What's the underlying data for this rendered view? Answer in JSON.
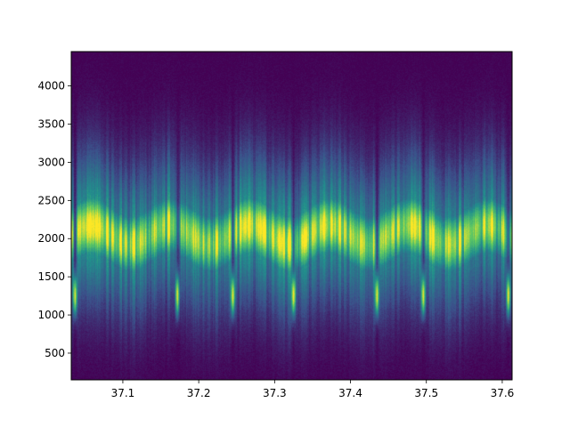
{
  "chart_data": {
    "type": "heatmap",
    "title": "",
    "xlabel": "",
    "ylabel": "",
    "xlim": [
      37.032,
      37.613
    ],
    "ylim": [
      150,
      4450
    ],
    "colormap": "viridis",
    "grid": false,
    "legend": "none",
    "x_ticks": [
      37.1,
      37.2,
      37.3,
      37.4,
      37.5,
      37.6
    ],
    "x_tick_labels": [
      "37.1",
      "37.2",
      "37.3",
      "37.4",
      "37.5",
      "37.6"
    ],
    "y_ticks": [
      500,
      1000,
      1500,
      2000,
      2500,
      3000,
      3500,
      4000
    ],
    "y_tick_labels": [
      "500",
      "1000",
      "1500",
      "2000",
      "2500",
      "3000",
      "3500",
      "4000"
    ],
    "band": {
      "center_hz": 2050,
      "half_width_hz": 420,
      "center_oscillation_hz": 120,
      "secondary_peak_hz": 1250,
      "dropouts_x": [
        37.037,
        37.172,
        37.245,
        37.325,
        37.435,
        37.496,
        37.608
      ]
    },
    "colors": {
      "low": "#440154",
      "mid_low": "#3b528b",
      "mid": "#21918c",
      "mid_high": "#5ec962",
      "high": "#fde725"
    }
  }
}
